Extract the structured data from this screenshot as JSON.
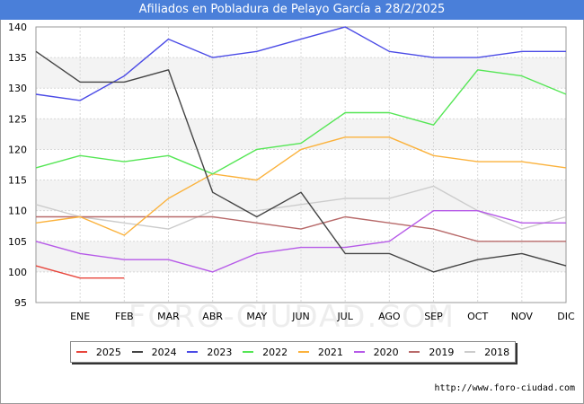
{
  "title": "Afiliados en Pobladura de Pelayo García a 28/2/2025",
  "source": "http://www.foro-ciudad.com",
  "watermark": "FORO-CIUDAD.COM",
  "chart_data": {
    "type": "line",
    "title": "Afiliados en Pobladura de Pelayo García a 28/2/2025",
    "xlabel": "",
    "ylabel": "",
    "ylim": [
      95,
      140
    ],
    "yticks": [
      95,
      100,
      105,
      110,
      115,
      120,
      125,
      130,
      135,
      140
    ],
    "categories": [
      "",
      "ENE",
      "FEB",
      "MAR",
      "ABR",
      "MAY",
      "JUN",
      "JUL",
      "AGO",
      "SEP",
      "OCT",
      "NOV",
      "DIC"
    ],
    "grid": true,
    "legend_position": "bottom",
    "series": [
      {
        "name": "2025",
        "color": "#e8463c",
        "values": [
          101,
          99,
          99,
          null,
          null,
          null,
          null,
          null,
          null,
          null,
          null,
          null,
          null
        ]
      },
      {
        "name": "2024",
        "color": "#444444",
        "values": [
          136,
          131,
          131,
          133,
          113,
          109,
          113,
          103,
          103,
          100,
          102,
          103,
          101
        ]
      },
      {
        "name": "2023",
        "color": "#4b4be6",
        "values": [
          129,
          128,
          132,
          138,
          135,
          136,
          138,
          140,
          136,
          135,
          135,
          136,
          136
        ]
      },
      {
        "name": "2022",
        "color": "#55e655",
        "values": [
          117,
          119,
          118,
          119,
          116,
          120,
          121,
          126,
          126,
          124,
          133,
          132,
          129
        ]
      },
      {
        "name": "2021",
        "color": "#fbb23c",
        "values": [
          108,
          109,
          106,
          112,
          116,
          115,
          120,
          122,
          122,
          119,
          118,
          118,
          117
        ]
      },
      {
        "name": "2020",
        "color": "#b65ae8",
        "values": [
          105,
          103,
          102,
          102,
          100,
          103,
          104,
          104,
          105,
          110,
          110,
          108,
          108
        ]
      },
      {
        "name": "2019",
        "color": "#b86a6a",
        "values": [
          109,
          109,
          109,
          109,
          109,
          108,
          107,
          109,
          108,
          107,
          105,
          105,
          105
        ]
      },
      {
        "name": "2018",
        "color": "#cccccc",
        "values": [
          111,
          109,
          108,
          107,
          110,
          110,
          111,
          112,
          112,
          114,
          110,
          107,
          109
        ]
      }
    ]
  }
}
